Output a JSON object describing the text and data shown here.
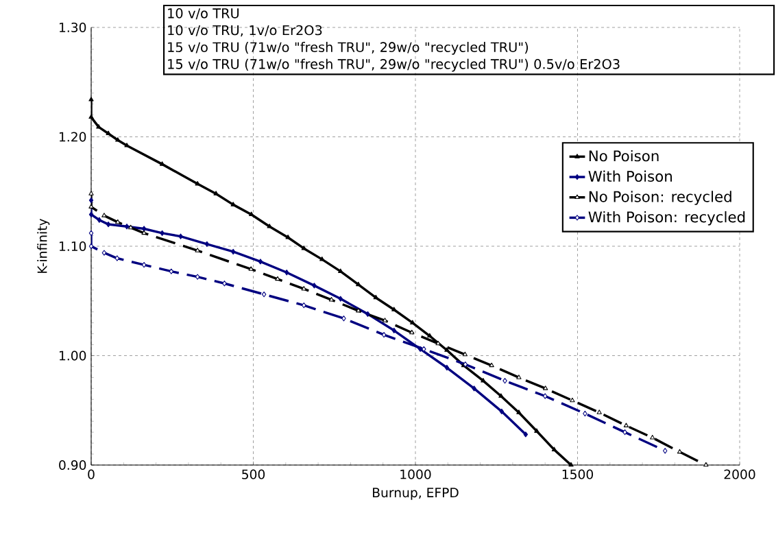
{
  "chart_data": {
    "type": "line",
    "xlabel": "Burnup, EFPD",
    "ylabel": "K-infinity",
    "xlim": [
      0,
      2000
    ],
    "ylim": [
      0.9,
      1.3
    ],
    "xticks": [
      0,
      500,
      1000,
      1500,
      2000
    ],
    "yticks": [
      {
        "value": 0.9,
        "label": "0.90"
      },
      {
        "value": 1.0,
        "label": "1.00"
      },
      {
        "value": 1.1,
        "label": "1.10"
      },
      {
        "value": 1.2,
        "label": "1.20"
      },
      {
        "value": 1.3,
        "label": "1.30"
      }
    ],
    "grid": true,
    "legend": "right",
    "annotations": [
      "10 v/o TRU",
      "10 v/o TRU, 1v/o Er2O3",
      "15 v/o TRU (71w/o \"fresh TRU\", 29w/o \"recycled TRU\")",
      "15 v/o TRU (71w/o \"fresh TRU\", 29w/o \"recycled TRU\") 0.5v/o Er2O3"
    ],
    "series": [
      {
        "name": "No Poison",
        "color": "#000000",
        "marker": "triangle",
        "line_style": "solid",
        "x": [
          0,
          0,
          23,
          53,
          82,
          110,
          219,
          328,
          385,
          438,
          494,
          550,
          607,
          656,
          712,
          769,
          824,
          878,
          934,
          991,
          1044,
          1097,
          1149,
          1209,
          1264,
          1319,
          1374,
          1428,
          1480
        ],
        "values": [
          1.234,
          1.218,
          1.209,
          1.203,
          1.197,
          1.192,
          1.175,
          1.157,
          1.148,
          1.138,
          1.129,
          1.118,
          1.108,
          1.098,
          1.088,
          1.077,
          1.065,
          1.053,
          1.042,
          1.03,
          1.018,
          1.005,
          0.991,
          0.977,
          0.963,
          0.948,
          0.931,
          0.914,
          0.9
        ]
      },
      {
        "name": "With Poison",
        "color": "#000080",
        "marker": "diamond",
        "line_style": "solid",
        "x": [
          0,
          0,
          25,
          53,
          110,
          163,
          219,
          276,
          357,
          438,
          522,
          603,
          688,
          769,
          853,
          934,
          1015,
          1097,
          1181,
          1266,
          1340
        ],
        "values": [
          1.142,
          1.129,
          1.124,
          1.12,
          1.118,
          1.116,
          1.112,
          1.109,
          1.102,
          1.095,
          1.086,
          1.076,
          1.064,
          1.052,
          1.038,
          1.023,
          1.006,
          0.989,
          0.97,
          0.949,
          0.928
        ]
      },
      {
        "name": "No Poison: recycled",
        "color": "#000000",
        "marker": "triangle",
        "line_style": "dashed",
        "x": [
          0,
          0,
          40,
          82,
          122,
          163,
          328,
          493,
          575,
          656,
          741,
          824,
          906,
          989,
          1070,
          1153,
          1235,
          1319,
          1401,
          1484,
          1567,
          1650,
          1731,
          1815,
          1896
        ],
        "values": [
          1.148,
          1.136,
          1.128,
          1.122,
          1.117,
          1.112,
          1.096,
          1.079,
          1.07,
          1.061,
          1.051,
          1.041,
          1.032,
          1.021,
          1.011,
          1.001,
          0.991,
          0.98,
          0.97,
          0.959,
          0.948,
          0.936,
          0.925,
          0.912,
          0.9
        ]
      },
      {
        "name": "With Poison: recycled",
        "color": "#000080",
        "marker": "diamond",
        "line_style": "dashed",
        "x": [
          0,
          0,
          40,
          80,
          163,
          247,
          328,
          411,
          533,
          656,
          779,
          903,
          1026,
          1154,
          1276,
          1400,
          1523,
          1646,
          1770
        ],
        "values": [
          1.112,
          1.1,
          1.094,
          1.089,
          1.083,
          1.077,
          1.072,
          1.066,
          1.056,
          1.046,
          1.034,
          1.019,
          1.006,
          0.992,
          0.977,
          0.963,
          0.947,
          0.93,
          0.913
        ]
      }
    ]
  }
}
